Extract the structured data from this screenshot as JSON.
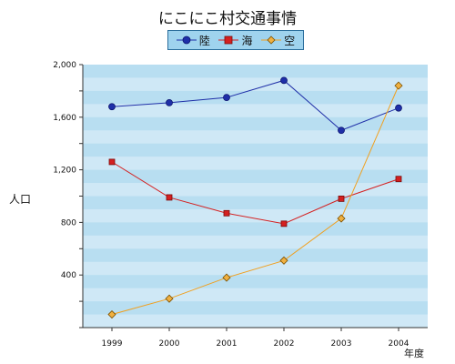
{
  "chart_data": {
    "type": "line",
    "title": "にこにこ村交通事情",
    "xlabel": "年度",
    "ylabel": "人口",
    "categories": [
      "1999",
      "2000",
      "2001",
      "2002",
      "2003",
      "2004"
    ],
    "ylim": [
      0,
      2000
    ],
    "yticks": [
      400,
      800,
      1200,
      1600,
      2000
    ],
    "ytick_labels": [
      "400",
      "800",
      "1,200",
      "1,600",
      "2,000"
    ],
    "legend_position": "top-center",
    "grid": "horizontal bands",
    "series": [
      {
        "name": "陸",
        "values": [
          1680,
          1710,
          1750,
          1880,
          1500,
          1670
        ],
        "color": "#1f2fa8",
        "marker": "circle",
        "marker_fill": "#1f2fa8"
      },
      {
        "name": "海",
        "values": [
          1260,
          990,
          870,
          790,
          980,
          1130
        ],
        "color": "#d42020",
        "marker": "square",
        "marker_fill": "#d42020"
      },
      {
        "name": "空",
        "values": [
          100,
          220,
          380,
          510,
          830,
          1840
        ],
        "color": "#f0a020",
        "marker": "diamond",
        "marker_fill": "#f0b040"
      }
    ],
    "colors": {
      "plot_bg_light": "#cfe8f6",
      "plot_bg_dark": "#b8def1",
      "legend_bg": "#9fd3ee"
    }
  }
}
